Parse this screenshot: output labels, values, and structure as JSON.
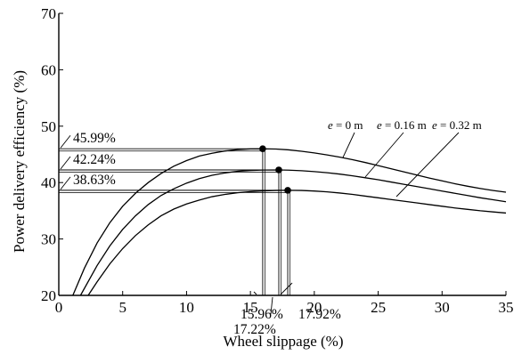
{
  "chart_data": {
    "type": "line",
    "title": "",
    "xlabel": "Wheel slippage (%)",
    "ylabel": "Power delivery efficiency (%)",
    "xlim": [
      0,
      35
    ],
    "ylim": [
      20,
      70
    ],
    "xticks": [
      0,
      5,
      10,
      15,
      20,
      25,
      30,
      35
    ],
    "yticks": [
      20,
      30,
      40,
      50,
      60,
      70
    ],
    "grid": false,
    "legend": "none",
    "series": [
      {
        "name": "e = 0 m",
        "label_var": "e",
        "label_rest": " = 0 m",
        "x": [
          1.1,
          2,
          3,
          4,
          5,
          6,
          7,
          8,
          9,
          10,
          11,
          12,
          13,
          14,
          15,
          15.96,
          17,
          18,
          19,
          20,
          21,
          22,
          23,
          24,
          25,
          26,
          27,
          28,
          29,
          30,
          31,
          32,
          33,
          34,
          35
        ],
        "y": [
          20,
          24.8,
          29.3,
          32.9,
          35.8,
          38.1,
          40.0,
          41.6,
          42.9,
          43.9,
          44.7,
          45.2,
          45.6,
          45.85,
          45.97,
          45.99,
          45.95,
          45.8,
          45.55,
          45.25,
          44.9,
          44.5,
          44.05,
          43.55,
          43.0,
          42.45,
          41.9,
          41.35,
          40.8,
          40.3,
          39.8,
          39.35,
          38.95,
          38.6,
          38.3
        ]
      },
      {
        "name": "e = 0.16 m",
        "label_var": "e",
        "label_rest": " = 0.16 m",
        "x": [
          1.7,
          3,
          4,
          5,
          6,
          7,
          8,
          9,
          10,
          11,
          12,
          13,
          14,
          15,
          16,
          17.22,
          18,
          19,
          20,
          21,
          22,
          23,
          24,
          25,
          26,
          27,
          28,
          29,
          30,
          31,
          32,
          33,
          34,
          35
        ],
        "y": [
          20,
          25.3,
          28.8,
          31.7,
          34.1,
          36.1,
          37.7,
          38.9,
          39.9,
          40.7,
          41.3,
          41.7,
          42.0,
          42.15,
          42.22,
          42.24,
          42.2,
          42.1,
          41.95,
          41.75,
          41.5,
          41.2,
          40.85,
          40.5,
          40.1,
          39.7,
          39.3,
          38.9,
          38.5,
          38.1,
          37.7,
          37.3,
          36.95,
          36.6
        ]
      },
      {
        "name": "e = 0.32 m",
        "label_var": "e",
        "label_rest": " = 0.32 m",
        "x": [
          2.3,
          3,
          4,
          5,
          6,
          7,
          8,
          9,
          10,
          11,
          12,
          13,
          14,
          15,
          16,
          17,
          17.92,
          19,
          20,
          21,
          22,
          23,
          24,
          25,
          26,
          27,
          28,
          29,
          30,
          31,
          32,
          33,
          34,
          35
        ],
        "y": [
          20,
          22.4,
          25.6,
          28.3,
          30.6,
          32.5,
          34.1,
          35.3,
          36.2,
          36.9,
          37.5,
          37.9,
          38.2,
          38.4,
          38.52,
          38.6,
          38.63,
          38.6,
          38.5,
          38.35,
          38.15,
          37.9,
          37.6,
          37.3,
          37.0,
          36.7,
          36.4,
          36.1,
          35.8,
          35.5,
          35.25,
          35.0,
          34.8,
          34.6
        ]
      }
    ],
    "peaks": [
      {
        "x": 15.96,
        "y": 45.99,
        "y_label": "45.99%",
        "x_label": "15.96%"
      },
      {
        "x": 17.22,
        "y": 42.24,
        "y_label": "42.24%",
        "x_label": "17.22%"
      },
      {
        "x": 17.92,
        "y": 38.63,
        "y_label": "38.63%",
        "x_label": "17.92%"
      }
    ]
  }
}
